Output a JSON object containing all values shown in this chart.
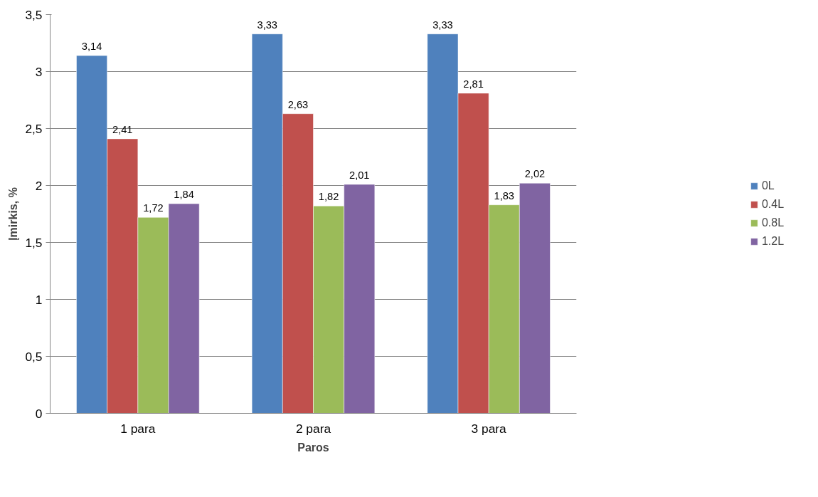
{
  "chart_data": {
    "type": "bar",
    "xlabel": "Paros",
    "ylabel": "Įmirkis, %",
    "categories": [
      "1 para",
      "2 para",
      "3 para"
    ],
    "series": [
      {
        "name": "0L",
        "color": "#4f81bd",
        "values": [
          3.14,
          3.33,
          3.33
        ],
        "value_labels": [
          "3,14",
          "3,33",
          "3,33"
        ]
      },
      {
        "name": "0.4L",
        "color": "#c0504d",
        "values": [
          2.41,
          2.63,
          2.81
        ],
        "value_labels": [
          "2,41",
          "2,63",
          "2,81"
        ]
      },
      {
        "name": "0.8L",
        "color": "#9bbb59",
        "values": [
          1.72,
          1.82,
          1.83
        ],
        "value_labels": [
          "1,72",
          "1,82",
          "1,83"
        ]
      },
      {
        "name": "1.2L",
        "color": "#8064a2",
        "values": [
          1.84,
          2.01,
          2.02
        ],
        "value_labels": [
          "1,84",
          "2,01",
          "2,02"
        ]
      }
    ],
    "ylim": [
      0,
      3.5
    ],
    "yticks": [
      0,
      {
        "value": 0.5,
        "label": "0,5"
      },
      1,
      {
        "value": 1.5,
        "label": "1,5"
      },
      2,
      {
        "value": 2.5,
        "label": "2,5"
      },
      3,
      {
        "value": 3.5,
        "label": "3,5"
      }
    ],
    "grid": "y",
    "legend": "right"
  }
}
